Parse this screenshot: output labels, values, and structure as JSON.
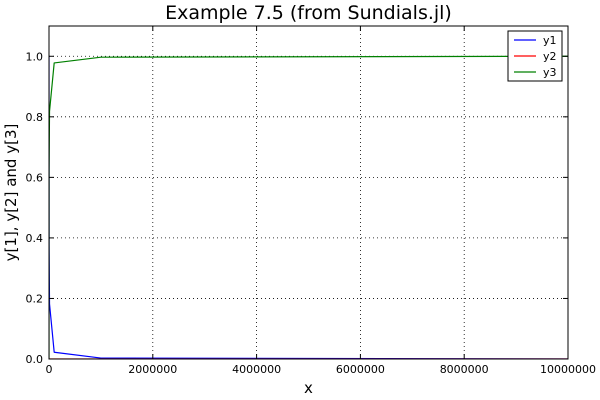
{
  "chart_data": {
    "type": "line",
    "title": "Example 7.5 (from Sundials.jl)",
    "xlabel": "x",
    "ylabel": "y[1], y[2] and y[3]",
    "xlim": [
      0,
      10000000
    ],
    "ylim": [
      0,
      1.1
    ],
    "x_ticks": [
      0,
      2000000,
      4000000,
      6000000,
      8000000,
      10000000
    ],
    "x_tick_labels": [
      "0",
      "2000000",
      "4000000",
      "6000000",
      "8000000",
      "10000000"
    ],
    "y_ticks": [
      0,
      0.2,
      0.4,
      0.6,
      0.8,
      1.0
    ],
    "y_tick_labels": [
      "0.0",
      "0.2",
      "0.4",
      "0.6",
      "0.8",
      "1.0"
    ],
    "grid": true,
    "legend_position": "top-right",
    "series": [
      {
        "name": "y1",
        "color": "#0000ff",
        "x": [
          0,
          1,
          10,
          100,
          1000,
          10000,
          100000,
          1000000,
          10000000
        ],
        "y": [
          1.0,
          0.966,
          0.841,
          0.617,
          0.379,
          0.182,
          0.0224,
          0.00309,
          0.0002
        ]
      },
      {
        "name": "y2",
        "color": "#ff0000",
        "x": [
          0,
          1,
          10,
          100,
          1000,
          10000,
          100000,
          1000000,
          10000000
        ],
        "y": [
          0,
          3.06e-05,
          1.62e-05,
          6.2e-06,
          2.2e-06,
          8e-07,
          1e-07,
          0.0,
          0.0
        ]
      },
      {
        "name": "y3",
        "color": "#008000",
        "x": [
          0,
          1,
          10,
          100,
          1000,
          10000,
          100000,
          1000000,
          10000000
        ],
        "y": [
          0,
          0.034,
          0.159,
          0.383,
          0.621,
          0.818,
          0.978,
          0.997,
          1.0
        ]
      }
    ]
  }
}
